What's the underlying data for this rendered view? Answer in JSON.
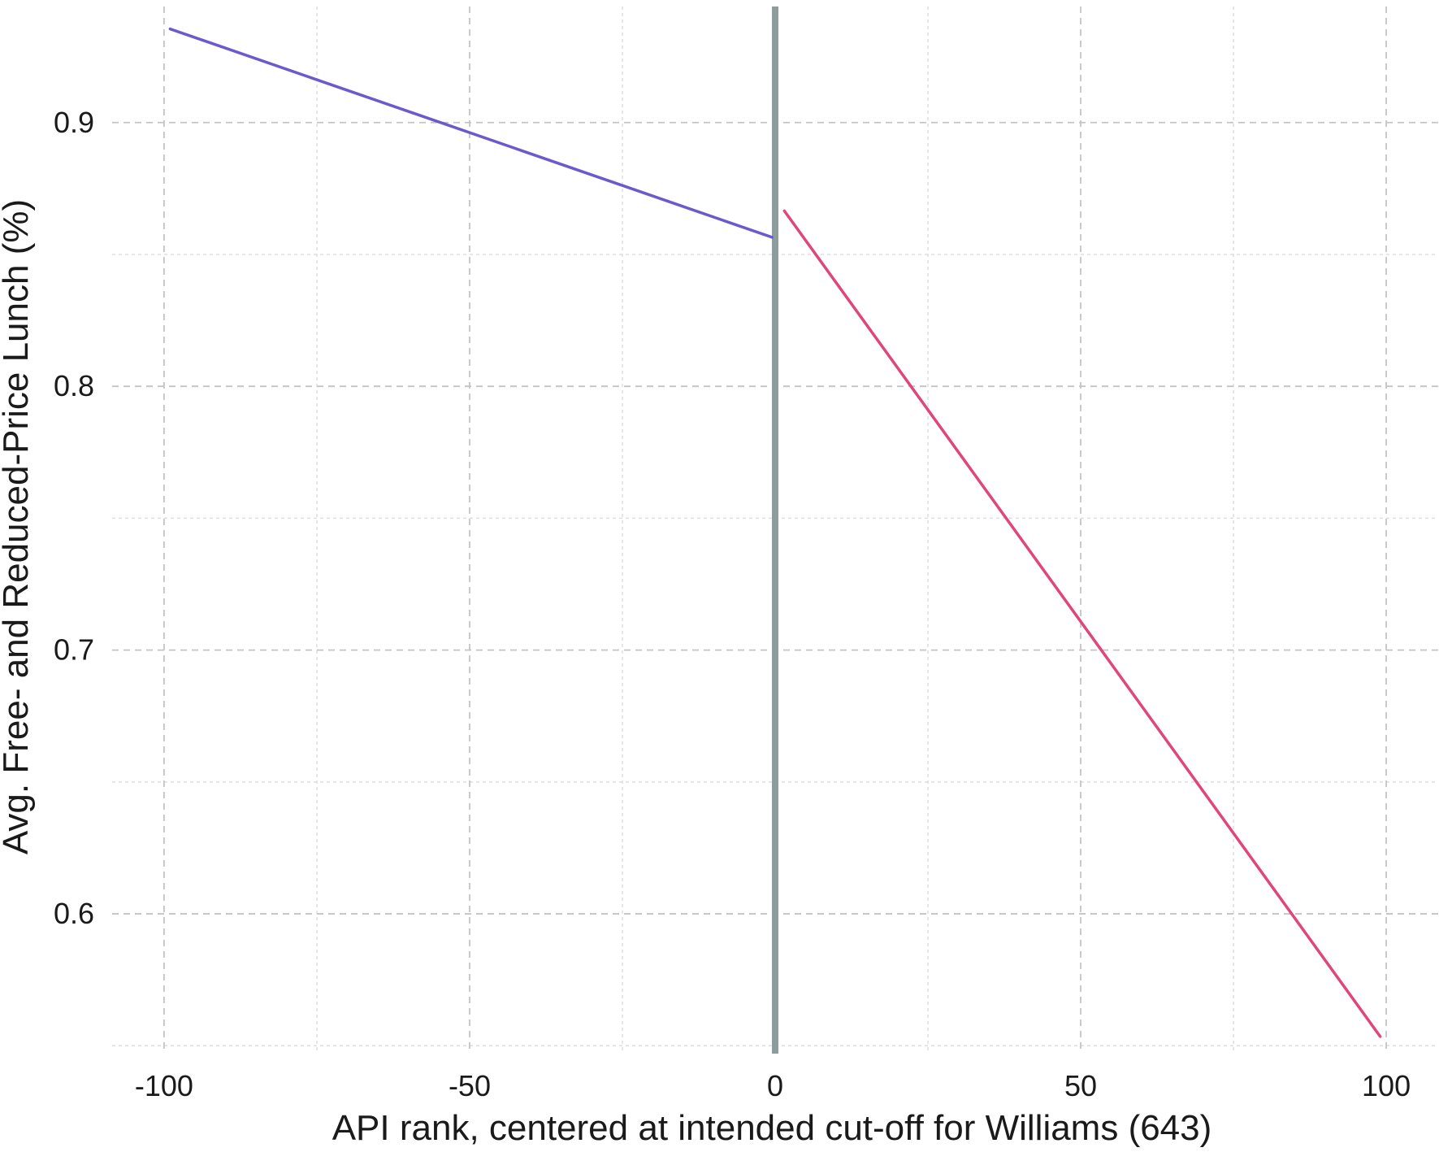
{
  "chart_data": {
    "type": "line",
    "title": "",
    "xlabel": "API rank, centered at intended cut-off for Williams (643)",
    "ylabel": "Avg. Free- and Reduced-Price Lunch (%)",
    "xlim": [
      -108.5,
      108.5
    ],
    "ylim": [
      0.547,
      0.944
    ],
    "x_major_ticks": [
      -100,
      -50,
      0,
      50,
      100
    ],
    "x_tick_labels": [
      "-100",
      "-50",
      "0",
      "50",
      "100"
    ],
    "x_minor_ticks": [
      -75,
      -25,
      25,
      75
    ],
    "y_major_ticks": [
      0.6,
      0.7,
      0.8,
      0.9
    ],
    "y_tick_labels": [
      "0.6",
      "0.7",
      "0.8",
      "0.9"
    ],
    "y_minor_ticks": [
      0.55,
      0.65,
      0.75,
      0.85
    ],
    "grid": true,
    "cutoff": {
      "x": 0,
      "color": "#8e9c9c"
    },
    "series": [
      {
        "color": "#6a5acd",
        "x": [
          -99,
          -0.5
        ],
        "y": [
          0.9355,
          0.8565
        ]
      },
      {
        "color": "#e0457b",
        "x": [
          1.5,
          99
        ],
        "y": [
          0.8665,
          0.5535
        ]
      }
    ]
  }
}
